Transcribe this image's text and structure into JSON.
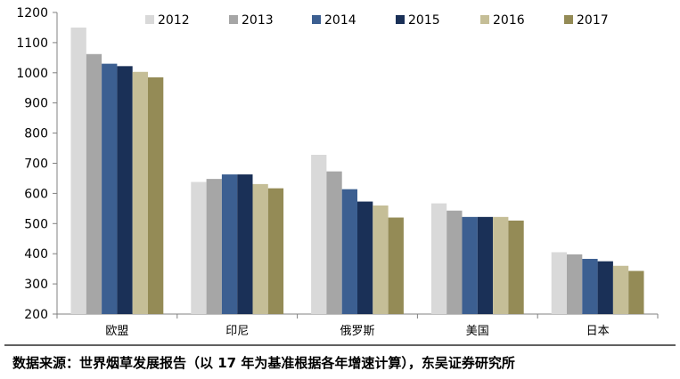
{
  "chart_data": {
    "type": "bar",
    "categories": [
      "欧盟",
      "印尼",
      "俄罗斯",
      "美国",
      "日本"
    ],
    "series": [
      {
        "name": "2012",
        "values": [
          1150,
          638,
          728,
          567,
          405
        ],
        "color": "#d9d9d9"
      },
      {
        "name": "2013",
        "values": [
          1062,
          648,
          673,
          543,
          398
        ],
        "color": "#a6a6a6"
      },
      {
        "name": "2014",
        "values": [
          1030,
          663,
          614,
          522,
          383
        ],
        "color": "#3c5f91"
      },
      {
        "name": "2015",
        "values": [
          1022,
          663,
          573,
          522,
          375
        ],
        "color": "#1a3057"
      },
      {
        "name": "2016",
        "values": [
          1003,
          631,
          560,
          522,
          360
        ],
        "color": "#c5be97"
      },
      {
        "name": "2017",
        "values": [
          985,
          617,
          520,
          510,
          343
        ],
        "color": "#948b56"
      }
    ],
    "yticks": [
      200,
      300,
      400,
      500,
      600,
      700,
      800,
      900,
      1000,
      1100,
      1200
    ],
    "ylim": [
      200,
      1200
    ],
    "legend_position": "top",
    "grid": false
  },
  "source_note": "数据来源：世界烟草发展报告（以 17 年为基准根据各年增速计算），东吴证券研究所"
}
